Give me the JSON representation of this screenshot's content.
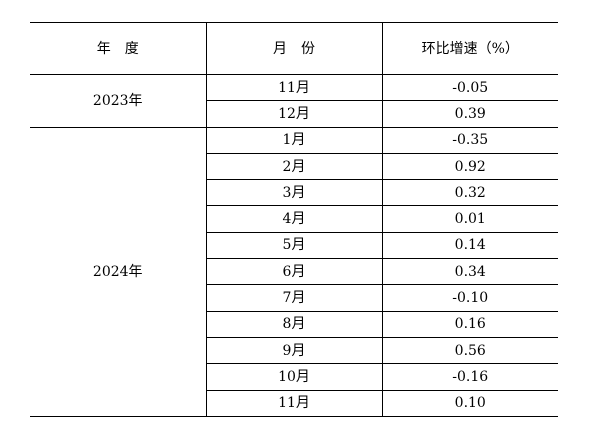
{
  "table": {
    "headers": {
      "year": "年度",
      "month": "月份",
      "growth": "环比增速（%）"
    },
    "groups": [
      {
        "year": "2023年",
        "rows": [
          {
            "month": "11月",
            "value": "-0.05"
          },
          {
            "month": "12月",
            "value": "0.39"
          }
        ]
      },
      {
        "year": "2024年",
        "rows": [
          {
            "month": "1月",
            "value": "-0.35"
          },
          {
            "month": "2月",
            "value": "0.92"
          },
          {
            "month": "3月",
            "value": "0.32"
          },
          {
            "month": "4月",
            "value": "0.01"
          },
          {
            "month": "5月",
            "value": "0.14"
          },
          {
            "month": "6月",
            "value": "0.34"
          },
          {
            "month": "7月",
            "value": "-0.10"
          },
          {
            "month": "8月",
            "value": "0.16"
          },
          {
            "month": "9月",
            "value": "0.56"
          },
          {
            "month": "10月",
            "value": "-0.16"
          },
          {
            "month": "11月",
            "value": "0.10"
          }
        ]
      }
    ]
  }
}
